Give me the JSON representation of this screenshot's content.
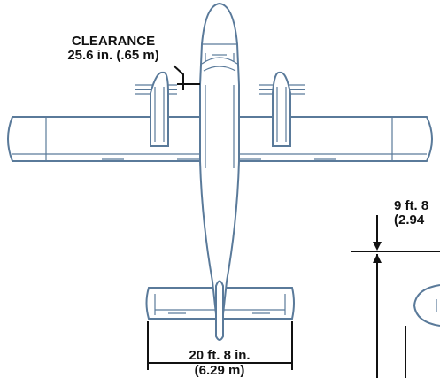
{
  "annotations": {
    "clearance_title": "CLEARANCE",
    "clearance_value": "25.6 in. (.65 m)",
    "tail_span_imperial": "20 ft. 8 in.",
    "tail_span_metric": "(6.29 m)",
    "height_imperial": "9 ft. 8",
    "height_metric": "(2.94"
  }
}
